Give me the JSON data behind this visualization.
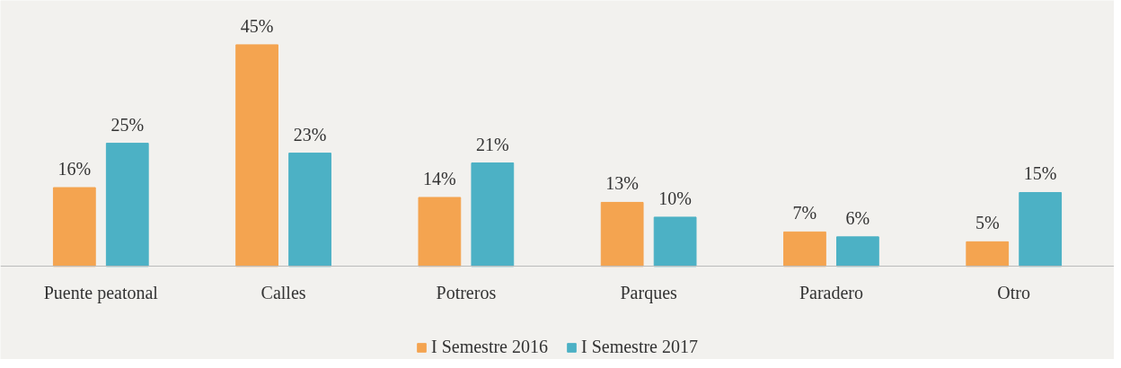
{
  "chart_data": {
    "type": "bar",
    "categories": [
      "Puente peatonal",
      "Calles",
      "Potreros",
      "Parques",
      "Paradero",
      "Otro"
    ],
    "series": [
      {
        "name": "I Semestre 2016",
        "color": "#f4a450",
        "values": [
          16,
          45,
          14,
          13,
          7,
          5
        ],
        "value_labels": [
          "16%",
          "45%",
          "14%",
          "13%",
          "7%",
          "5%"
        ]
      },
      {
        "name": "I Semestre 2017",
        "color": "#4cb1c5",
        "values": [
          25,
          23,
          21,
          10,
          6,
          15
        ],
        "value_labels": [
          "25%",
          "23%",
          "21%",
          "10%",
          "6%",
          "15%"
        ]
      }
    ],
    "legend": "bottom"
  }
}
